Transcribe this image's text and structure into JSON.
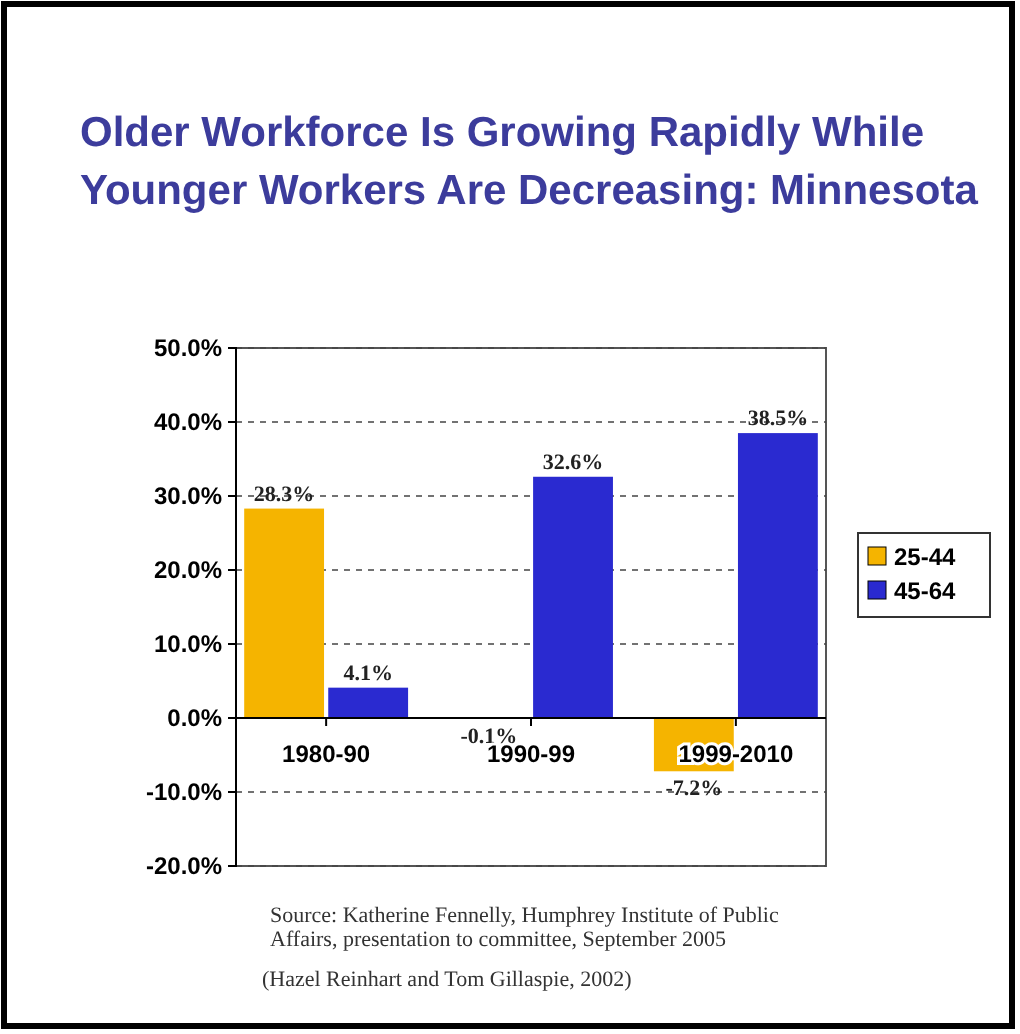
{
  "chart_data": {
    "type": "bar",
    "title": "Older Workforce Is Growing Rapidly While Younger Workers Are Decreasing: Minnesota",
    "categories": [
      "1980-90",
      "1990-99",
      "1999-2010"
    ],
    "series": [
      {
        "name": "25-44",
        "color": "#f5b400",
        "values": [
          28.3,
          -0.1,
          -7.2
        ],
        "value_labels": [
          "28.3%",
          "-0.1%",
          "-7.2%"
        ]
      },
      {
        "name": "45-64",
        "color": "#2a2ad0",
        "values": [
          4.1,
          32.6,
          38.5
        ],
        "value_labels": [
          "4.1%",
          "32.6%",
          "38.5%"
        ]
      }
    ],
    "ylim": [
      -20,
      50
    ],
    "yticks": [
      {
        "value": -20,
        "label": "-20.0%"
      },
      {
        "value": -10,
        "label": "-10.0%"
      },
      {
        "value": 0,
        "label": "0.0%"
      },
      {
        "value": 10,
        "label": "10.0%"
      },
      {
        "value": 20,
        "label": "20.0%"
      },
      {
        "value": 30,
        "label": "30.0%"
      },
      {
        "value": 40,
        "label": "40.0%"
      },
      {
        "value": 50,
        "label": "50.0%"
      }
    ],
    "grid": "y",
    "legend": "right",
    "annotations": [
      "Source:  Katherine Fennelly, Humphrey Institute of Public Affairs, presentation to committee, September 2005",
      "(Hazel Reinhart and Tom Gillaspie, 2002)"
    ]
  }
}
